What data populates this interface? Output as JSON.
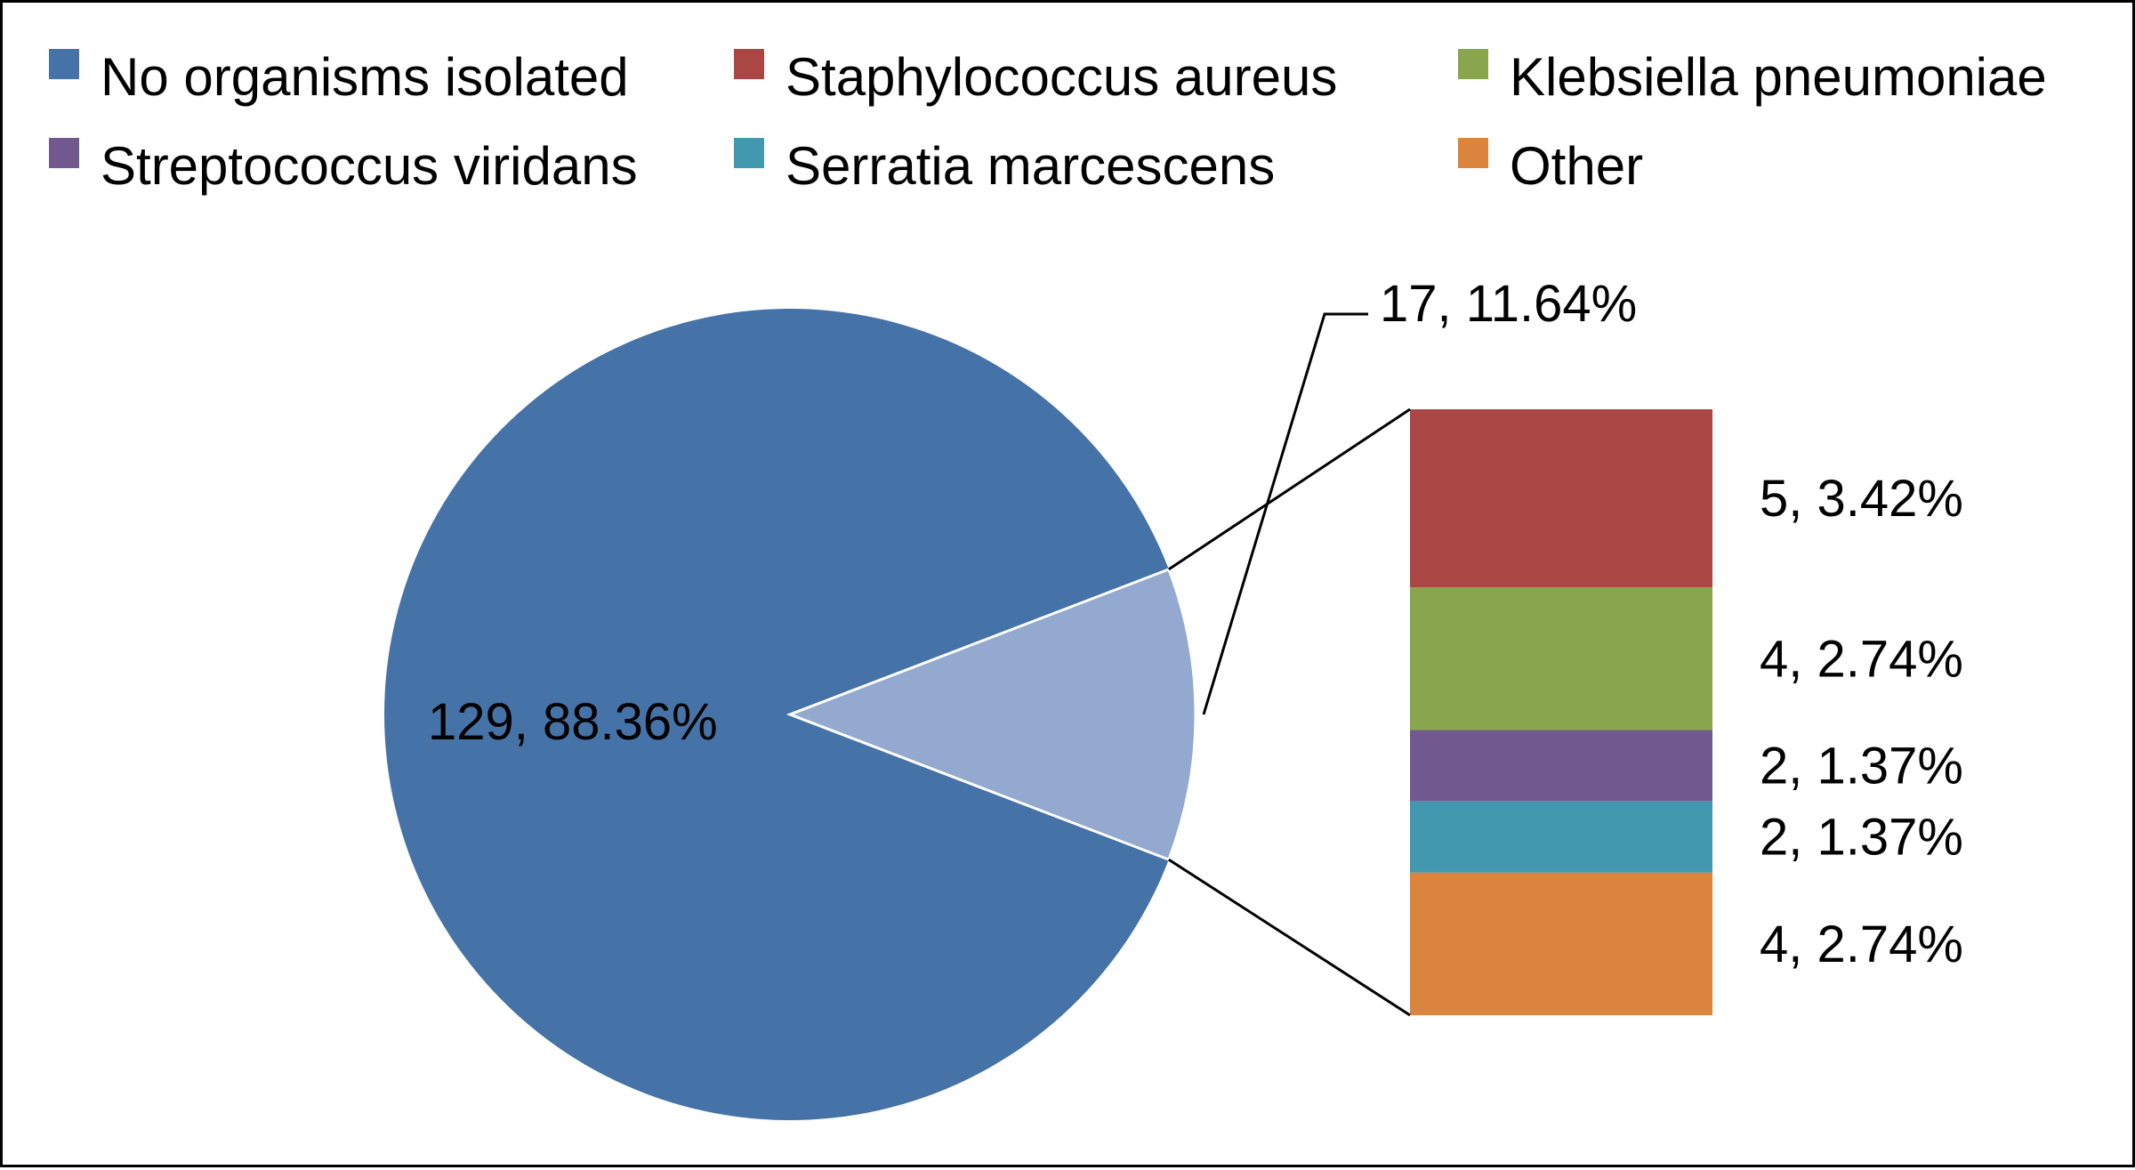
{
  "chart_data": {
    "type": "pie",
    "subtype": "pie-of-bar",
    "legend_position": "top",
    "slices": [
      {
        "name": "No organisms isolated",
        "value": 129,
        "label": "129, 88.36%",
        "color": "#4572A7"
      }
    ],
    "aggregate_slice": {
      "value": 17,
      "label": "17, 11.64%",
      "color": "#93A9CF"
    },
    "bar_breakdown": [
      {
        "name": "Staphylococcus aureus",
        "value": 5,
        "label": "5, 3.42%",
        "color": "#AA4643"
      },
      {
        "name": "Klebsiella pneumoniae",
        "value": 4,
        "label": "4, 2.74%",
        "color": "#89A54E"
      },
      {
        "name": "Streptococcus viridans",
        "value": 2,
        "label": "2, 1.37%",
        "color": "#71588F"
      },
      {
        "name": "Serratia marcescens",
        "value": 2,
        "label": "2, 1.37%",
        "color": "#4198AF"
      },
      {
        "name": "Other",
        "value": 4,
        "label": "4, 2.74%",
        "color": "#DB843D"
      }
    ],
    "legend": [
      {
        "name": "No organisms isolated",
        "color": "#4572A7"
      },
      {
        "name": "Staphylococcus aureus",
        "color": "#AA4643"
      },
      {
        "name": "Klebsiella pneumoniae",
        "color": "#89A54E"
      },
      {
        "name": "Streptococcus viridans",
        "color": "#71588F"
      },
      {
        "name": "Serratia marcescens",
        "color": "#4198AF"
      },
      {
        "name": "Other",
        "color": "#DB843D"
      }
    ]
  }
}
